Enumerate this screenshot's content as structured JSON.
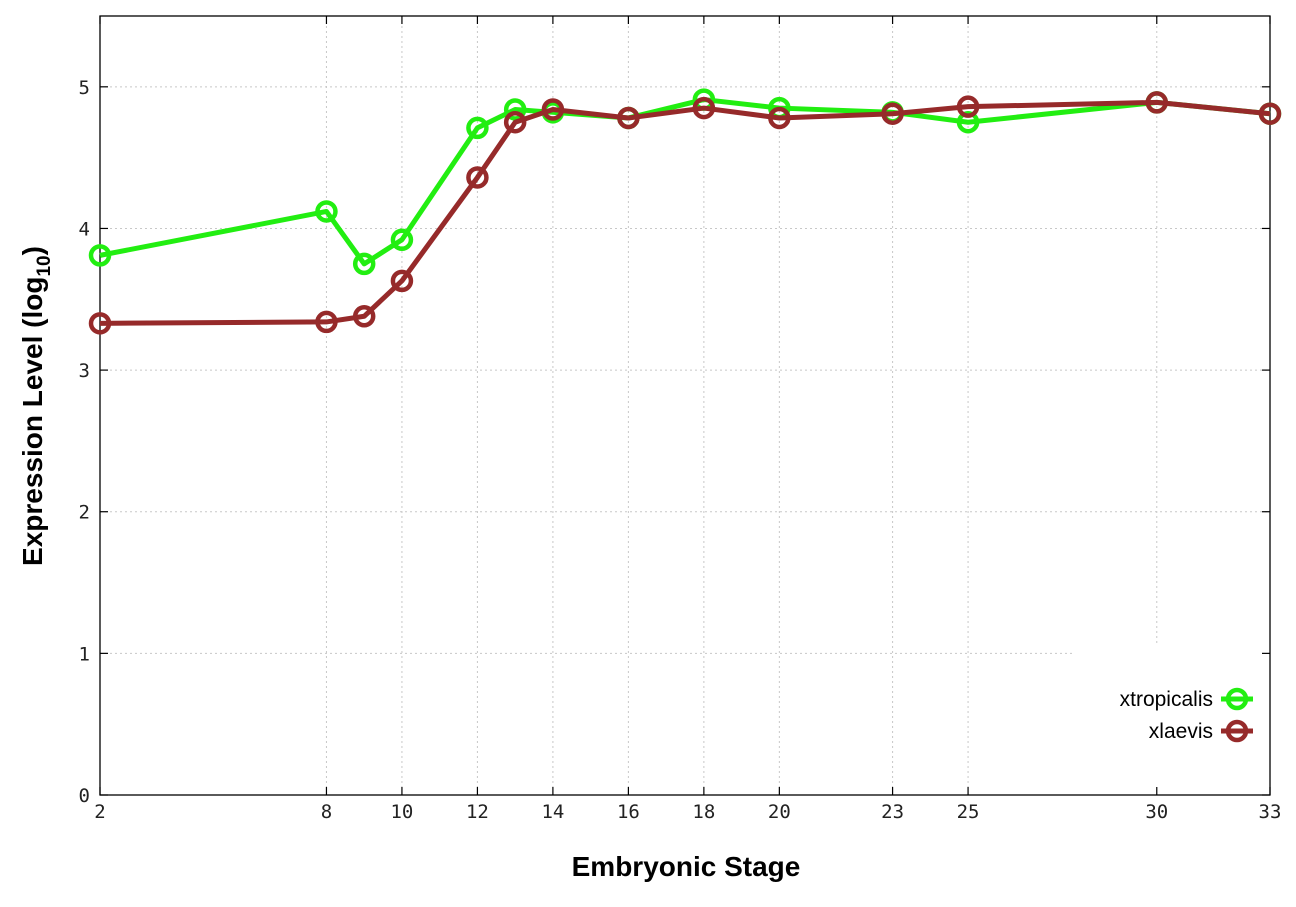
{
  "chart_data": {
    "type": "line",
    "xlabel": "Embryonic Stage",
    "ylabel_main": "Expression Level (log",
    "ylabel_sub": "10",
    "ylabel_close": ")",
    "x_ticks": [
      2,
      8,
      10,
      12,
      14,
      16,
      18,
      20,
      23,
      25,
      30,
      33
    ],
    "y_ticks": [
      0,
      1,
      2,
      3,
      4,
      5
    ],
    "ylim": [
      0,
      5.5
    ],
    "grid": true,
    "legend_position": "bottom-right",
    "series": [
      {
        "name": "xtropicalis",
        "color": "#22ee11",
        "x": [
          2,
          8,
          9,
          10,
          12,
          13,
          14,
          16,
          18,
          20,
          23,
          25,
          30,
          33
        ],
        "y": [
          3.81,
          4.12,
          3.75,
          3.92,
          4.71,
          4.84,
          4.82,
          4.78,
          4.91,
          4.85,
          4.82,
          4.75,
          4.89,
          4.81
        ]
      },
      {
        "name": "xlaevis",
        "color": "#962a2a",
        "x": [
          2,
          8,
          9,
          10,
          12,
          13,
          14,
          16,
          18,
          20,
          23,
          25,
          30,
          33
        ],
        "y": [
          3.33,
          3.34,
          3.38,
          3.63,
          4.36,
          4.75,
          4.84,
          4.78,
          4.85,
          4.78,
          4.81,
          4.86,
          4.89,
          4.81
        ]
      }
    ]
  }
}
